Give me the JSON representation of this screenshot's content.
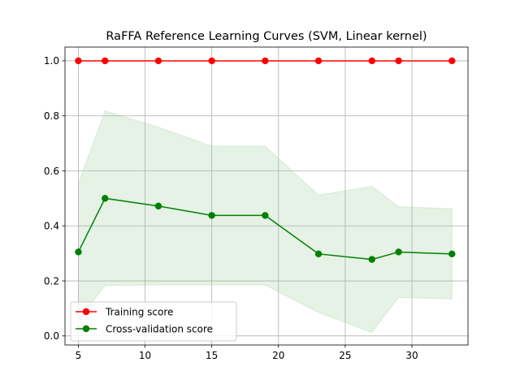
{
  "chart_data": {
    "type": "line",
    "title": "RaFFA Reference Learning Curves (SVM, Linear kernel)",
    "xlabel": "",
    "ylabel": "",
    "x": [
      5,
      7,
      11,
      15,
      19,
      23,
      27,
      29,
      33
    ],
    "xlim": [
      4,
      34.2
    ],
    "ylim": [
      -0.033,
      1.05
    ],
    "xticks": [
      5,
      10,
      15,
      20,
      25,
      30
    ],
    "yticks": [
      0.0,
      0.2,
      0.4,
      0.6,
      0.8,
      1.0
    ],
    "xtick_labels": [
      "5",
      "10",
      "15",
      "20",
      "25",
      "30"
    ],
    "ytick_labels": [
      "0.0",
      "0.2",
      "0.4",
      "0.6",
      "0.8",
      "1.0"
    ],
    "grid": true,
    "legend_position": "lower-left",
    "series": [
      {
        "name": "Training score",
        "color": "#ff0000",
        "values": [
          1.0,
          1.0,
          1.0,
          1.0,
          1.0,
          1.0,
          1.0,
          1.0,
          1.0
        ],
        "band_lower": [
          1.0,
          1.0,
          1.0,
          1.0,
          1.0,
          1.0,
          1.0,
          1.0,
          1.0
        ],
        "band_upper": [
          1.0,
          1.0,
          1.0,
          1.0,
          1.0,
          1.0,
          1.0,
          1.0,
          1.0
        ]
      },
      {
        "name": "Cross-validation score",
        "color": "#008000",
        "values": [
          0.305,
          0.5,
          0.472,
          0.438,
          0.438,
          0.298,
          0.278,
          0.305,
          0.298
        ],
        "band_lower": [
          0.055,
          0.183,
          0.185,
          0.185,
          0.185,
          0.085,
          0.012,
          0.14,
          0.134
        ],
        "band_upper": [
          0.555,
          0.818,
          0.759,
          0.69,
          0.69,
          0.512,
          0.544,
          0.47,
          0.462
        ]
      }
    ]
  }
}
